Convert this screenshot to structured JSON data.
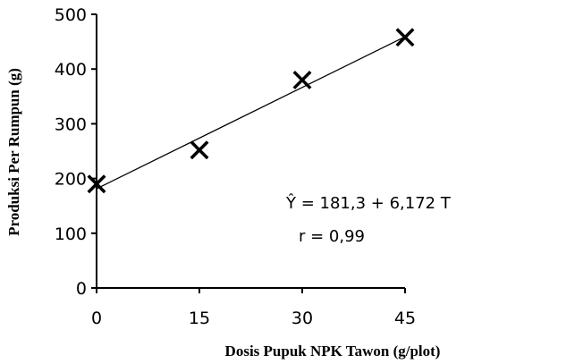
{
  "chart_data": {
    "type": "scatter",
    "xlabel": "Dosis Pupuk NPK Tawon (g/plot)",
    "ylabel": "Produksi Per Rumpun (g)",
    "xlim": [
      0,
      45
    ],
    "ylim": [
      0,
      500
    ],
    "x_ticks": [
      "0",
      "15",
      "30",
      "45"
    ],
    "y_ticks": [
      "0",
      "100",
      "200",
      "300",
      "400",
      "500"
    ],
    "grid": false,
    "marker": "x",
    "series": [
      {
        "x": [
          0,
          15,
          30,
          45
        ],
        "y": [
          190,
          252,
          380,
          458
        ]
      }
    ],
    "trendline": {
      "type": "linear",
      "intercept": 181.3,
      "slope": 6.172
    },
    "annotations": [
      "Ŷ = 181,3  +  6,172 T",
      "r = 0,99"
    ]
  }
}
